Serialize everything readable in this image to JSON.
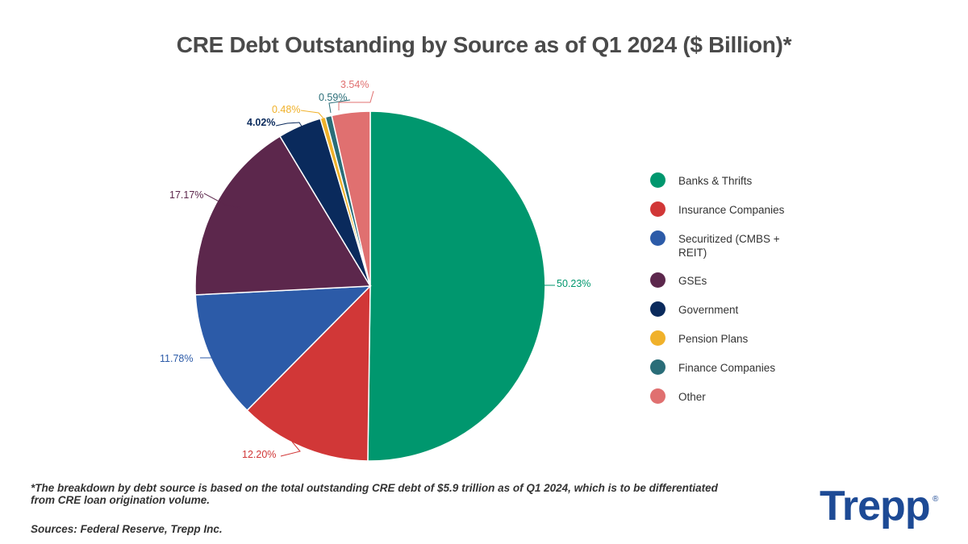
{
  "title": "CRE Debt Outstanding by Source as of Q1 2024 ($ Billion)*",
  "chart_data": {
    "type": "pie",
    "title": "CRE Debt Outstanding by Source as of Q1 2024 ($ Billion)*",
    "legend_position": "right",
    "slices": [
      {
        "label": "Banks & Thrifts",
        "value": 50.23,
        "display": "50.23%",
        "color": "#00976e"
      },
      {
        "label": "Insurance Companies",
        "value": 12.2,
        "display": "12.20%",
        "color": "#d13737"
      },
      {
        "label": "Securitized (CMBS + REIT)",
        "value": 11.78,
        "display": "11.78%",
        "color": "#2c5ba8"
      },
      {
        "label": "GSEs",
        "value": 17.17,
        "display": "17.17%",
        "color": "#5c274c"
      },
      {
        "label": "Government",
        "value": 4.02,
        "display": "4.02%",
        "color": "#0a2a5c"
      },
      {
        "label": "Pension Plans",
        "value": 0.48,
        "display": "0.48%",
        "color": "#f0b12a"
      },
      {
        "label": "Finance Companies",
        "value": 0.59,
        "display": "0.59%",
        "color": "#2a6d78"
      },
      {
        "label": "Other",
        "value": 3.54,
        "display": "3.54%",
        "color": "#e07070"
      }
    ]
  },
  "legend": {
    "items": [
      {
        "label": "Banks & Thrifts",
        "color": "#00976e"
      },
      {
        "label": "Insurance Companies",
        "color": "#d13737"
      },
      {
        "label": "Securitized (CMBS + REIT)",
        "color": "#2c5ba8"
      },
      {
        "label": "GSEs",
        "color": "#5c274c"
      },
      {
        "label": "Government",
        "color": "#0a2a5c"
      },
      {
        "label": "Pension Plans",
        "color": "#f0b12a"
      },
      {
        "label": "Finance Companies",
        "color": "#2a6d78"
      },
      {
        "label": "Other",
        "color": "#e07070"
      }
    ]
  },
  "footnote": "*The breakdown by debt source is based on the total outstanding CRE debt of $5.9 trillion as of Q1 2024, which is to be differentiated from CRE loan origination volume.",
  "sources": "Sources: Federal Reserve, Trepp Inc.",
  "brand": {
    "name": "Trepp",
    "mark": "®",
    "color": "#1d4a95"
  }
}
